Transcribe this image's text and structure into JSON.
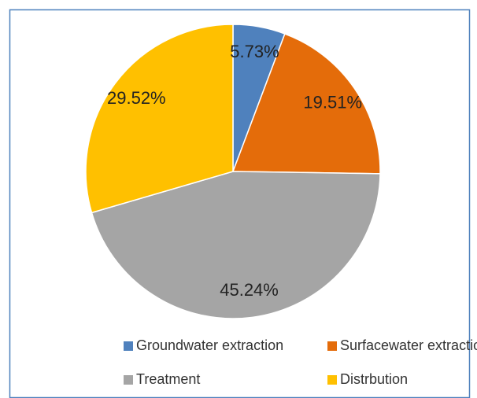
{
  "chart_data": {
    "type": "pie",
    "categories": [
      "Groundwater extraction",
      "Surfacewater extraction",
      "Treatment",
      "Distrbution"
    ],
    "values": [
      5.73,
      19.51,
      45.24,
      29.52
    ],
    "value_labels": [
      "5.73%",
      "19.51%",
      "45.24%",
      "29.52%"
    ],
    "colors": [
      "#4f81bd",
      "#e46c0a",
      "#a5a5a5",
      "#ffc000"
    ],
    "legend": "bottom"
  }
}
